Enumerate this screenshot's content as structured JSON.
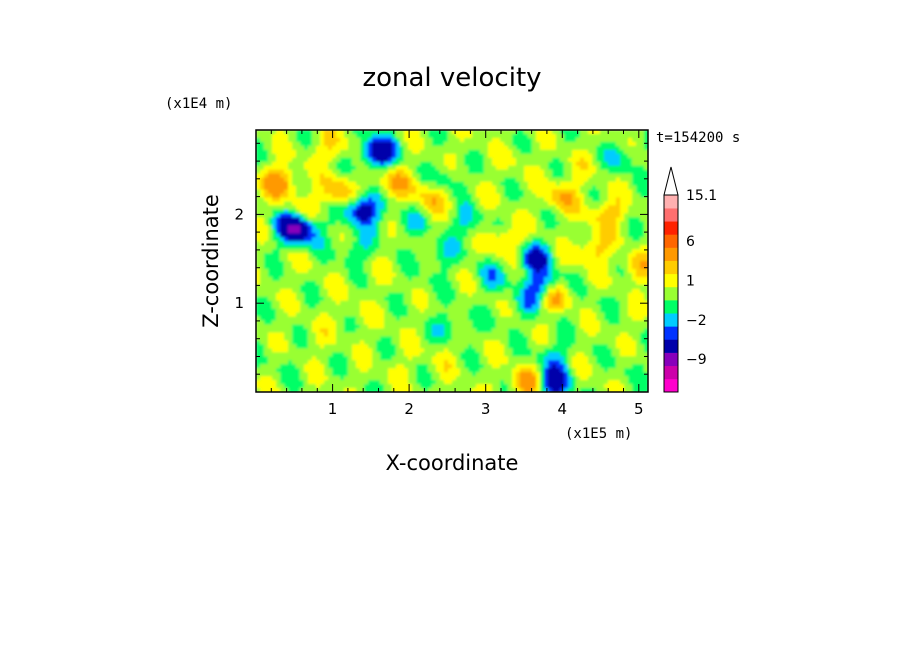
{
  "chart_data": {
    "type": "heatmap",
    "title": "zonal velocity",
    "xlabel": "X-coordinate",
    "ylabel": "Z-coordinate",
    "x_unit": "(x1E5 m)",
    "y_unit": "(x1E4 m)",
    "time_label": "t=154200 s",
    "xlim": [
      0,
      5.12
    ],
    "ylim": [
      0,
      2.95
    ],
    "x_ticks": [
      1,
      2,
      3,
      4,
      5
    ],
    "x_tick_labels": [
      "1",
      "2",
      "3",
      "4",
      "5"
    ],
    "y_ticks": [
      1,
      2
    ],
    "y_tick_labels": [
      "1",
      "2"
    ],
    "colorbar": {
      "levels": [
        -15,
        -12,
        -9,
        -6,
        -3,
        -2,
        -1,
        0,
        1,
        2,
        3,
        6,
        9,
        12,
        15.1
      ],
      "colors": [
        "#ff00cc",
        "#cc00aa",
        "#8800bb",
        "#0000aa",
        "#0033ff",
        "#00ccff",
        "#00ff66",
        "#99ff33",
        "#ffff00",
        "#ffcc00",
        "#ff9900",
        "#ff6600",
        "#ff2200",
        "#ff6f6f",
        "#ffb0b0"
      ],
      "labels": [
        {
          "value": 15.1,
          "text": "15.1"
        },
        {
          "value": 6,
          "text": "6"
        },
        {
          "value": 1,
          "text": "1"
        },
        {
          "value": -2,
          "text": "−2"
        },
        {
          "value": -9,
          "text": "−9"
        }
      ]
    },
    "field_features": {
      "background_value": 0.5,
      "blobs": [
        {
          "x": 0.3,
          "z": 2.35,
          "value": 3.5
        },
        {
          "x": 0.6,
          "z": 2.0,
          "value": 1.5
        },
        {
          "x": 0.7,
          "z": 1.5,
          "value": 0.2
        },
        {
          "x": 0.45,
          "z": 2.6,
          "value": 0.3
        },
        {
          "x": 0.8,
          "z": 0.6,
          "value": 0.5
        },
        {
          "x": 0.35,
          "z": 0.35,
          "value": -0.5
        },
        {
          "x": 0.5,
          "z": 1.85,
          "value": -6.5
        },
        {
          "x": 0.7,
          "z": 1.8,
          "value": -1.5
        },
        {
          "x": 1.0,
          "z": 2.75,
          "value": 1.6
        },
        {
          "x": 1.05,
          "z": 2.25,
          "value": 2.5
        },
        {
          "x": 1.4,
          "z": 2.05,
          "value": -5.0
        },
        {
          "x": 1.6,
          "z": 2.7,
          "value": -5.5
        },
        {
          "x": 1.8,
          "z": 2.35,
          "value": 2.5
        },
        {
          "x": 1.3,
          "z": 1.6,
          "value": -1.6
        },
        {
          "x": 1.5,
          "z": 1.3,
          "value": 0.3
        },
        {
          "x": 1.2,
          "z": 0.9,
          "value": 0.6
        },
        {
          "x": 1.6,
          "z": 0.7,
          "value": 0.2
        },
        {
          "x": 1.9,
          "z": 0.3,
          "value": 0.5
        },
        {
          "x": 2.0,
          "z": 1.9,
          "value": -1.2
        },
        {
          "x": 2.3,
          "z": 2.2,
          "value": 2.2
        },
        {
          "x": 2.5,
          "z": 2.4,
          "value": -1.5
        },
        {
          "x": 2.15,
          "z": 1.2,
          "value": -0.5
        },
        {
          "x": 2.4,
          "z": 1.55,
          "value": -1.6
        },
        {
          "x": 2.55,
          "z": 0.75,
          "value": -1.6
        },
        {
          "x": 2.45,
          "z": 0.4,
          "value": 0.6
        },
        {
          "x": 2.7,
          "z": 2.7,
          "value": 0.3
        },
        {
          "x": 2.75,
          "z": 1.9,
          "value": -1.7
        },
        {
          "x": 3.0,
          "z": 2.2,
          "value": 0.2
        },
        {
          "x": 3.1,
          "z": 1.3,
          "value": -1.6
        },
        {
          "x": 3.2,
          "z": 0.8,
          "value": -0.5
        },
        {
          "x": 3.25,
          "z": 1.7,
          "value": 2.1
        },
        {
          "x": 3.35,
          "z": 2.6,
          "value": 0.5
        },
        {
          "x": 3.55,
          "z": 0.1,
          "value": 3.5
        },
        {
          "x": 3.6,
          "z": 1.0,
          "value": -1.7
        },
        {
          "x": 3.65,
          "z": 1.5,
          "value": -4.0
        },
        {
          "x": 3.78,
          "z": 1.15,
          "value": -8.0
        },
        {
          "x": 3.83,
          "z": 1.1,
          "value": 7.5
        },
        {
          "x": 3.9,
          "z": 0.4,
          "value": -1.7
        },
        {
          "x": 3.88,
          "z": 0.1,
          "value": -5.0
        },
        {
          "x": 4.0,
          "z": 2.2,
          "value": 2.4
        },
        {
          "x": 4.2,
          "z": 2.5,
          "value": 0.5
        },
        {
          "x": 4.0,
          "z": 1.5,
          "value": 0.3
        },
        {
          "x": 4.4,
          "z": 1.6,
          "value": 2.2
        },
        {
          "x": 4.6,
          "z": 2.0,
          "value": 2.3
        },
        {
          "x": 4.8,
          "z": 2.65,
          "value": -1.5
        },
        {
          "x": 4.5,
          "z": 1.0,
          "value": -0.5
        },
        {
          "x": 4.8,
          "z": 0.8,
          "value": 0.4
        },
        {
          "x": 4.9,
          "z": 0.3,
          "value": -0.6
        },
        {
          "x": 5.0,
          "z": 1.4,
          "value": 2.0
        },
        {
          "x": 4.3,
          "z": 0.2,
          "value": 0.3
        }
      ]
    }
  }
}
